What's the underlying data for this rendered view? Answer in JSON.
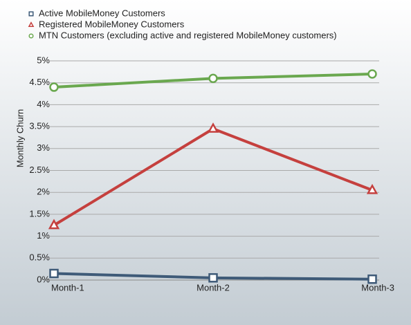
{
  "chart_data": {
    "type": "line",
    "y_label": "Monthly Churn",
    "categories": [
      "Month-1",
      "Month-2",
      "Month-3"
    ],
    "series": [
      {
        "name": "Active MobileMoney Customers",
        "color": "#3e5a78",
        "marker": "square",
        "values": [
          0.15,
          0.05,
          0.02
        ]
      },
      {
        "name": "Registered MobileMoney Customers",
        "color": "#c5403e",
        "marker": "triangle",
        "values": [
          1.25,
          3.45,
          2.05
        ]
      },
      {
        "name": "MTN Customers (excluding active and registered MobileMoney customers)",
        "color": "#6aa84f",
        "marker": "circle",
        "values": [
          4.4,
          4.6,
          4.7
        ]
      }
    ],
    "ylim": [
      0,
      5
    ],
    "yticks": [
      {
        "value": 0,
        "label": "0%"
      },
      {
        "value": 0.5,
        "label": "0.5%"
      },
      {
        "value": 1,
        "label": "1%"
      },
      {
        "value": 1.5,
        "label": "1.5%"
      },
      {
        "value": 2,
        "label": "2%"
      },
      {
        "value": 2.5,
        "label": "2.5%"
      },
      {
        "value": 3,
        "label": "3%"
      },
      {
        "value": 3.5,
        "label": "3.5%"
      },
      {
        "value": 4,
        "label": "4%"
      },
      {
        "value": 4.5,
        "label": "4.5%"
      },
      {
        "value": 5,
        "label": "5%"
      }
    ],
    "grid": true
  }
}
